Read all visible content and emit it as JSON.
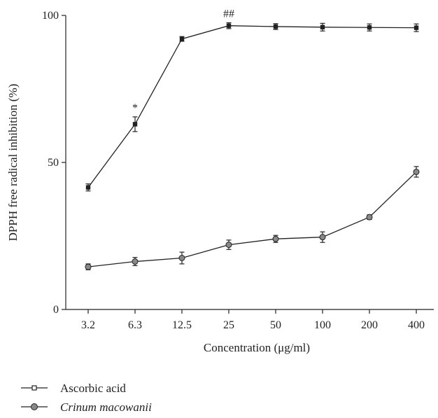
{
  "chart_data": {
    "type": "line",
    "title": "",
    "xlabel": "Concentration (μg/ml)",
    "ylabel": "DPPH free radical inhibition (%)",
    "categories": [
      "3.2",
      "6.3",
      "12.5",
      "25",
      "50",
      "100",
      "200",
      "400"
    ],
    "ylim": [
      0,
      100
    ],
    "yticks": [
      0,
      50,
      100
    ],
    "grid": false,
    "legend_position": "bottom-left",
    "series": [
      {
        "name": "Ascorbic acid",
        "marker": "square",
        "color": "#222222",
        "values": [
          41.5,
          63.0,
          92.0,
          96.5,
          96.2,
          96.0,
          95.9,
          95.8
        ],
        "errors": [
          1.2,
          2.5,
          0.8,
          1.0,
          1.0,
          1.3,
          1.2,
          1.3
        ]
      },
      {
        "name": "Crinum macowanii",
        "marker": "circle",
        "color": "#888888",
        "values": [
          14.5,
          16.3,
          17.5,
          22.0,
          24.0,
          24.6,
          31.4,
          46.8
        ],
        "errors": [
          1.0,
          1.4,
          2.0,
          1.6,
          1.2,
          1.8,
          0.8,
          1.8
        ]
      }
    ],
    "annotations": [
      {
        "text": "*",
        "category": "6.3",
        "y": 63.0
      },
      {
        "text": "##",
        "category": "25",
        "y": 96.5
      }
    ]
  }
}
